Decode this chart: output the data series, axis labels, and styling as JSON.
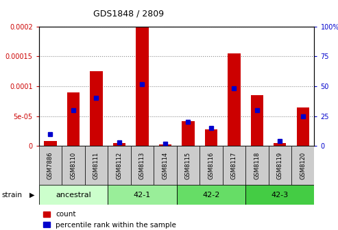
{
  "title": "GDS1848 / 2809",
  "samples": [
    "GSM7886",
    "GSM8110",
    "GSM8111",
    "GSM8112",
    "GSM8113",
    "GSM8114",
    "GSM8115",
    "GSM8116",
    "GSM8117",
    "GSM8118",
    "GSM8119",
    "GSM8120"
  ],
  "counts": [
    8e-06,
    9e-05,
    0.000125,
    5e-06,
    0.0002,
    3e-06,
    4.2e-05,
    2.8e-05,
    0.000155,
    8.5e-05,
    5e-06,
    6.5e-05
  ],
  "percentiles": [
    10,
    30,
    40,
    3,
    52,
    2,
    20,
    15,
    48,
    30,
    4,
    25
  ],
  "ylim_left": [
    0,
    0.0002
  ],
  "ylim_right": [
    0,
    100
  ],
  "yticks_left": [
    0,
    5e-05,
    0.0001,
    0.00015,
    0.0002
  ],
  "ytick_labels_left": [
    "0",
    "5e-05",
    "0.0001",
    "0.00015",
    "0.0002"
  ],
  "yticks_right": [
    0,
    25,
    50,
    75,
    100
  ],
  "ytick_labels_right": [
    "0",
    "25",
    "50",
    "75",
    "100%"
  ],
  "strain_groups": [
    {
      "label": "ancestral",
      "start": 0,
      "end": 3,
      "color": "#ccffcc"
    },
    {
      "label": "42-1",
      "start": 3,
      "end": 6,
      "color": "#99ee99"
    },
    {
      "label": "42-2",
      "start": 6,
      "end": 9,
      "color": "#66dd66"
    },
    {
      "label": "42-3",
      "start": 9,
      "end": 12,
      "color": "#44cc44"
    }
  ],
  "bar_color_red": "#cc0000",
  "bar_color_blue": "#0000cc",
  "grid_color": "#888888",
  "tick_area_color": "#cccccc",
  "bar_width": 0.55,
  "blue_marker_size": 5
}
